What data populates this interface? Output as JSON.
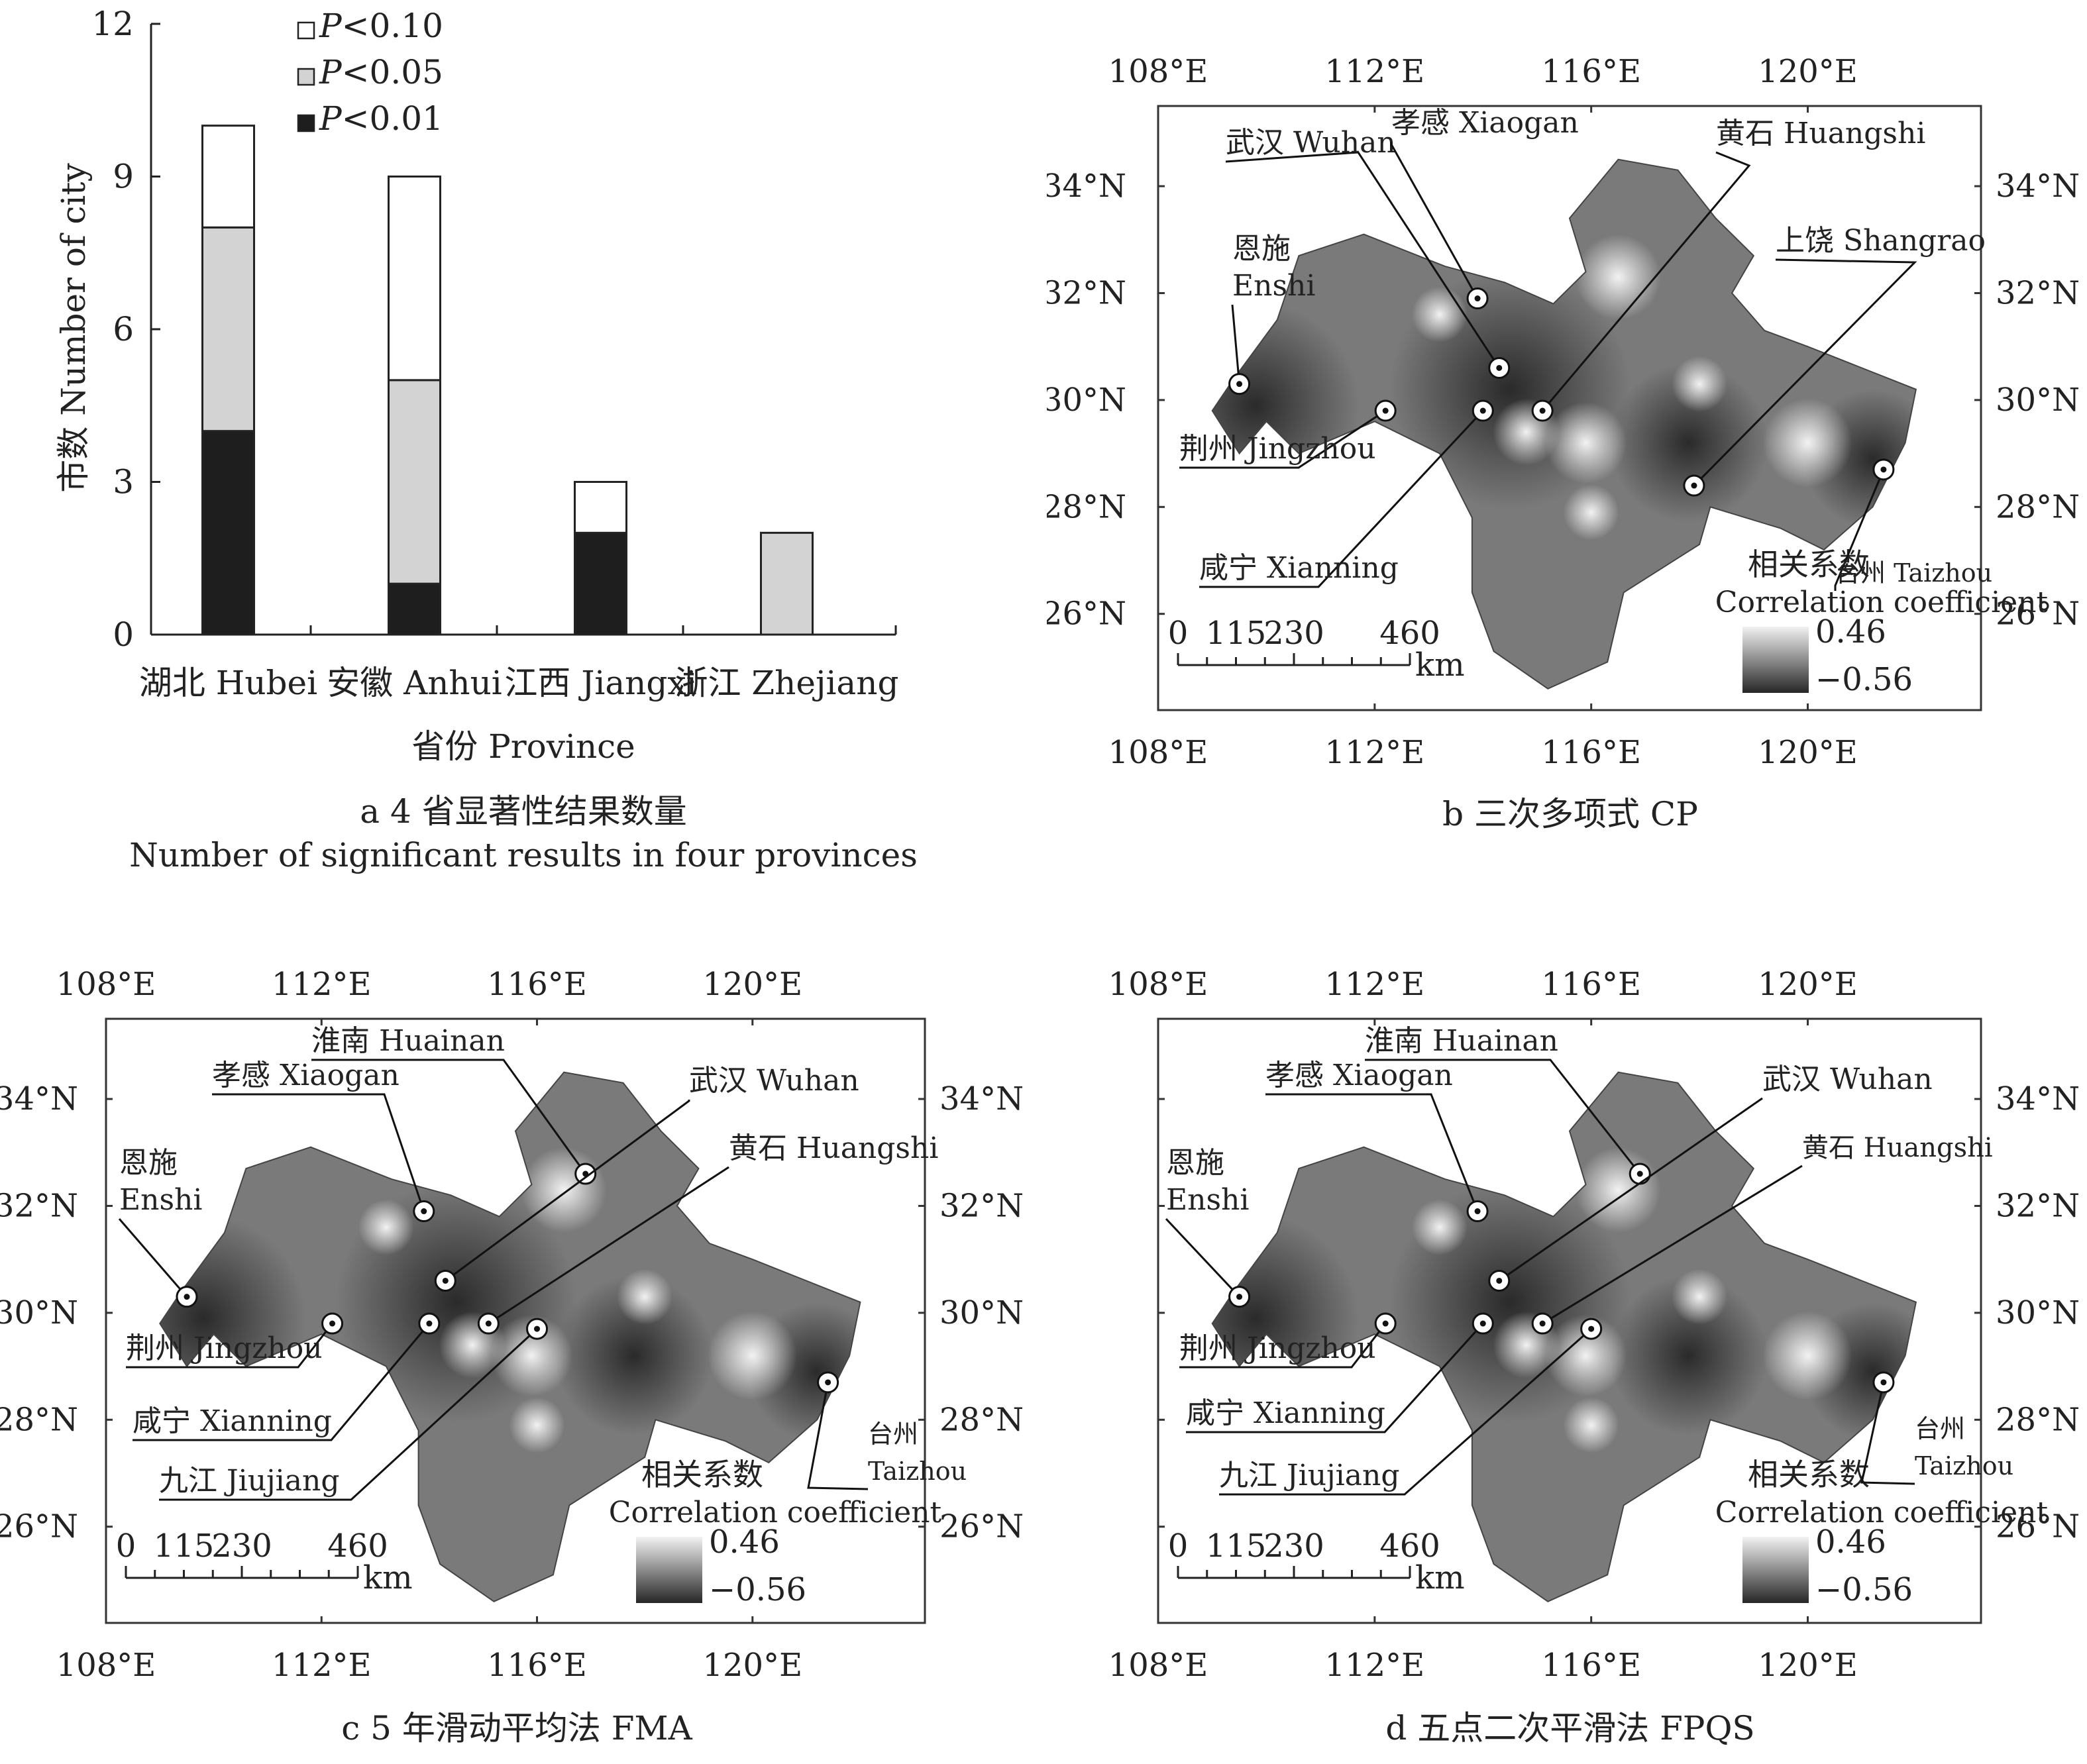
{
  "panel_a": {
    "caption_zh": "a 4 省显著性结果数量",
    "caption_en": "Number of significant results in four provinces"
  },
  "panel_b": {
    "caption": "b 三次多项式 CP"
  },
  "panel_c": {
    "caption": "c 5 年滑动平均法 FMA"
  },
  "panel_d": {
    "caption": "d 五点二次平滑法 FPQS"
  },
  "colors": {
    "p010": "#ffffff",
    "p005": "#d3d3d3",
    "p001": "#1e1e1e",
    "map_fill": "#7a7a7a",
    "map_dark": "#262626",
    "map_light": "#f2f2f2"
  },
  "chart_data": [
    {
      "type": "bar",
      "stacked": true,
      "categories": [
        "湖北 Hubei",
        "安徽 Anhui",
        "江西 Jiangxi",
        "浙江 Zhejiang"
      ],
      "series": [
        {
          "name": "P<0.01",
          "values": [
            4,
            1,
            2,
            0
          ]
        },
        {
          "name": "P<0.05",
          "values": [
            4,
            4,
            0,
            2
          ]
        },
        {
          "name": "P<0.10",
          "values": [
            2,
            4,
            1,
            0
          ]
        }
      ],
      "legend": [
        {
          "label_italic": "P",
          "label_rest": "<0.10"
        },
        {
          "label_italic": "P",
          "label_rest": "<0.05"
        },
        {
          "label_italic": "P",
          "label_rest": "<0.01"
        }
      ],
      "legend_position": "top-center",
      "xlabel": "省份 Province",
      "ylabel": "市数 Number of city",
      "ylim": [
        0,
        12
      ],
      "yticks": [
        "0",
        "3",
        "6",
        "9",
        "12"
      ],
      "grid": false
    },
    {
      "type": "heatmap",
      "panel": "b",
      "lon_ticks": [
        "108°E",
        "112°E",
        "116°E",
        "120°E"
      ],
      "lat_ticks": [
        "26°N",
        "28°N",
        "30°N",
        "32°N",
        "34°N"
      ],
      "scalebar": {
        "ticks": [
          "0",
          "115",
          "230",
          "460"
        ],
        "unit": "km"
      },
      "legend": {
        "title_zh": "相关系数",
        "title_en": "Correlation coefficient",
        "max": "0.46",
        "min": "−0.56"
      },
      "cities": [
        {
          "label": "武汉 Wuhan",
          "lon": 114.3,
          "lat": 30.6
        },
        {
          "label": "孝感 Xiaogan",
          "lon": 113.9,
          "lat": 31.9
        },
        {
          "label": "黄石 Huangshi",
          "lon": 115.1,
          "lat": 29.8
        },
        {
          "label": "上饶 Shangrao",
          "lon": 117.9,
          "lat": 28.4
        },
        {
          "label_zh": "恩施",
          "label_en": "Enshi",
          "lon": 109.5,
          "lat": 30.3
        },
        {
          "label": "荆州 Jingzhou",
          "lon": 112.2,
          "lat": 29.8
        },
        {
          "label": "咸宁 Xianning",
          "lon": 114.0,
          "lat": 29.8
        },
        {
          "label": "台州 Taizhou",
          "lon": 121.4,
          "lat": 28.7
        }
      ]
    },
    {
      "type": "heatmap",
      "panel": "c",
      "lon_ticks": [
        "108°E",
        "112°E",
        "116°E",
        "120°E"
      ],
      "lat_ticks": [
        "26°N",
        "28°N",
        "30°N",
        "32°N",
        "34°N"
      ],
      "scalebar": {
        "ticks": [
          "0",
          "115",
          "230",
          "460"
        ],
        "unit": "km"
      },
      "legend": {
        "title_zh": "相关系数",
        "title_en": "Correlation coefficient",
        "max": "0.46",
        "min": "−0.56"
      },
      "cities": [
        {
          "label": "淮南 Huainan",
          "lon": 116.9,
          "lat": 32.6
        },
        {
          "label": "孝感 Xiaogan",
          "lon": 113.9,
          "lat": 31.9
        },
        {
          "label": "武汉 Wuhan",
          "lon": 114.3,
          "lat": 30.6
        },
        {
          "label": "黄石 Huangshi",
          "lon": 115.1,
          "lat": 29.8
        },
        {
          "label_zh": "恩施",
          "label_en": "Enshi",
          "lon": 109.5,
          "lat": 30.3
        },
        {
          "label": "荆州 Jingzhou",
          "lon": 112.2,
          "lat": 29.8
        },
        {
          "label": "咸宁 Xianning",
          "lon": 114.0,
          "lat": 29.8
        },
        {
          "label": "九江 Jiujiang",
          "lon": 116.0,
          "lat": 29.7
        },
        {
          "label_zh": "台州",
          "label_en": "Taizhou",
          "lon": 121.4,
          "lat": 28.7
        }
      ]
    },
    {
      "type": "heatmap",
      "panel": "d",
      "lon_ticks": [
        "108°E",
        "112°E",
        "116°E",
        "120°E"
      ],
      "lat_ticks": [
        "26°N",
        "28°N",
        "30°N",
        "32°N",
        "34°N"
      ],
      "scalebar": {
        "ticks": [
          "0",
          "115",
          "230",
          "460"
        ],
        "unit": "km"
      },
      "legend": {
        "title_zh": "相关系数",
        "title_en": "Correlation coefficient",
        "max": "0.46",
        "min": "−0.56"
      },
      "cities": [
        {
          "label": "淮南 Huainan",
          "lon": 116.9,
          "lat": 32.6
        },
        {
          "label": "孝感 Xiaogan",
          "lon": 113.9,
          "lat": 31.9
        },
        {
          "label": "武汉 Wuhan",
          "lon": 114.3,
          "lat": 30.6
        },
        {
          "label": "黄石 Huangshi",
          "lon": 115.1,
          "lat": 29.8
        },
        {
          "label_zh": "恩施",
          "label_en": "Enshi",
          "lon": 109.5,
          "lat": 30.3
        },
        {
          "label": "荆州 Jingzhou",
          "lon": 112.2,
          "lat": 29.8
        },
        {
          "label": "咸宁 Xianning",
          "lon": 114.0,
          "lat": 29.8
        },
        {
          "label": "九江 Jiujiang",
          "lon": 116.0,
          "lat": 29.7
        },
        {
          "label_zh": "台州",
          "label_en": "Taizhou",
          "lon": 121.4,
          "lat": 28.7
        }
      ]
    }
  ]
}
